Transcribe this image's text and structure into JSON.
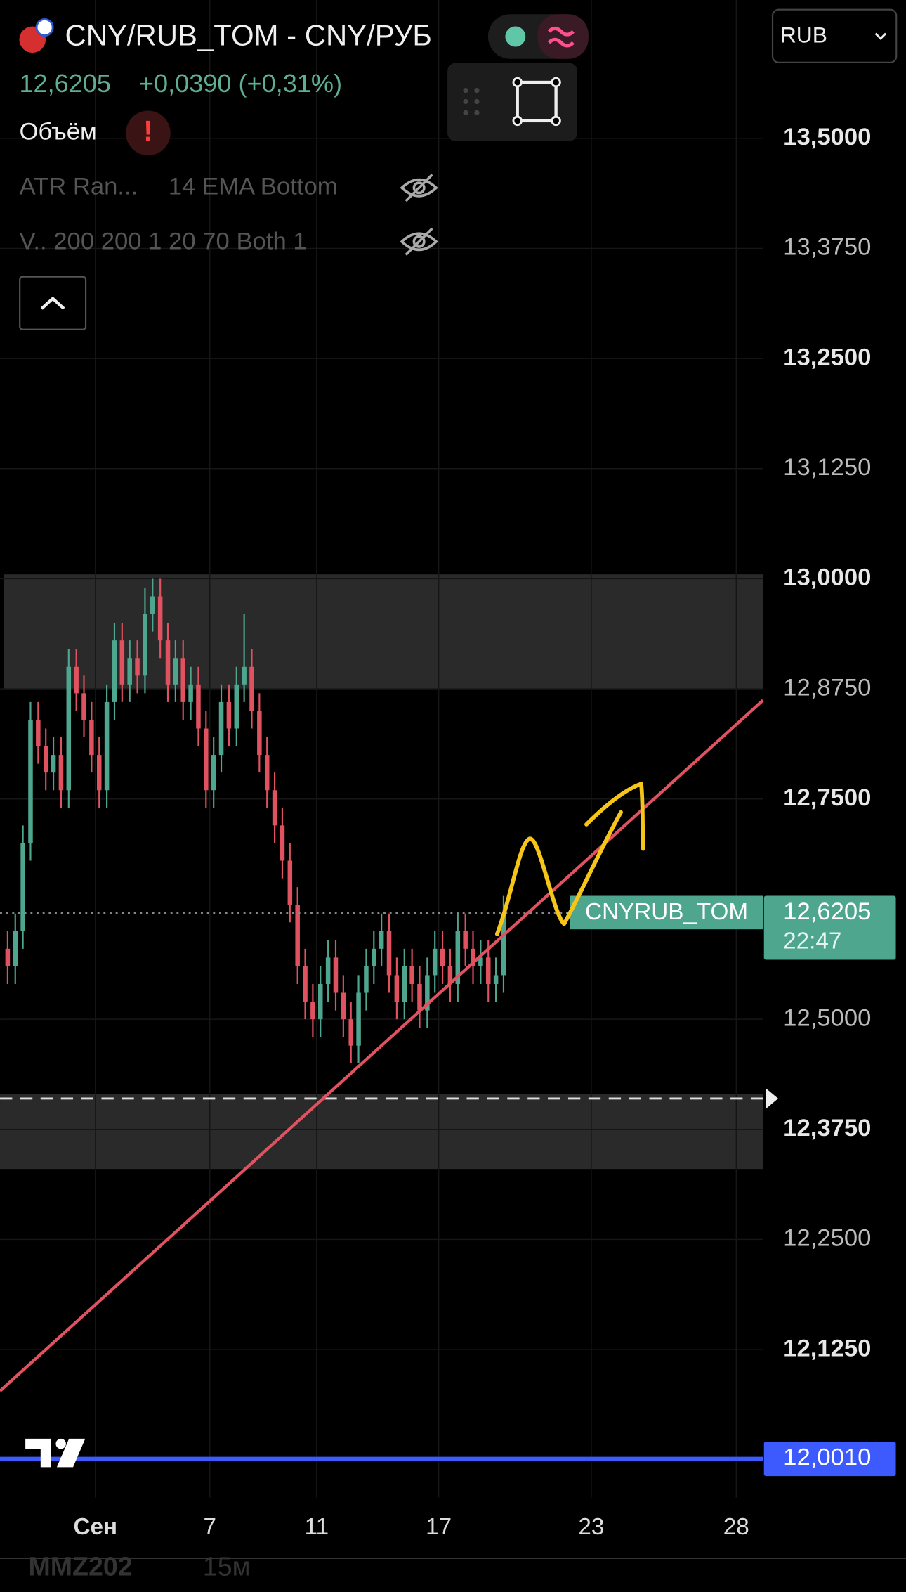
{
  "header": {
    "title": "CNY/RUB_TOM - CNY/РУБ",
    "price": "12,6205",
    "change": "+0,0390 (+0,31%)",
    "volume_label": "Объём",
    "indicators": [
      {
        "name": "ATR Ran...",
        "params": "14 EMA Bottom"
      },
      {
        "name": "V.. 200 200 1 20 70 Both 1"
      }
    ],
    "currency": "RUB"
  },
  "footer": {
    "symbol": "MMZ202",
    "interval": "15м"
  },
  "chart_data": {
    "type": "candlestick",
    "up_color": "#4fa68f",
    "down_color": "#e0525f",
    "grid": true,
    "xlim": [
      -0.5,
      99.5
    ],
    "ylim": [
      11.957,
      13.657
    ],
    "xticks": [
      {
        "value": 12,
        "label": "Сен"
      },
      {
        "value": 27,
        "label": "7"
      },
      {
        "value": 41,
        "label": "11"
      },
      {
        "value": 57,
        "label": "17"
      },
      {
        "value": 77,
        "label": "23"
      },
      {
        "value": 96,
        "label": "28"
      }
    ],
    "yticks": [
      {
        "value": 13.5,
        "label": "13,5000"
      },
      {
        "value": 13.375,
        "label": "13,3750"
      },
      {
        "value": 13.25,
        "label": "13,2500"
      },
      {
        "value": 13.125,
        "label": "13,1250"
      },
      {
        "value": 13.0,
        "label": "13,0000"
      },
      {
        "value": 12.875,
        "label": "12,8750"
      },
      {
        "value": 12.75,
        "label": "12,7500"
      },
      {
        "value": 12.5,
        "label": "12,5000"
      },
      {
        "value": 12.375,
        "label": "12,3750"
      },
      {
        "value": 12.25,
        "label": "12,2500"
      },
      {
        "value": 12.125,
        "label": "12,1250"
      }
    ],
    "x": [
      0,
      1,
      2,
      3,
      4,
      5,
      6,
      7,
      8,
      9,
      10,
      11,
      12,
      13,
      14,
      15,
      16,
      17,
      18,
      19,
      20,
      21,
      22,
      23,
      24,
      25,
      26,
      27,
      28,
      29,
      30,
      31,
      32,
      33,
      34,
      35,
      36,
      37,
      38,
      39,
      40,
      41,
      42,
      43,
      44,
      45,
      46,
      47,
      48,
      49,
      50,
      51,
      52,
      53,
      54,
      55,
      56,
      57,
      58,
      59,
      60,
      61,
      62,
      63,
      64,
      65
    ],
    "open": [
      12.58,
      12.56,
      12.6,
      12.7,
      12.84,
      12.81,
      12.78,
      12.8,
      12.76,
      12.9,
      12.87,
      12.84,
      12.8,
      12.76,
      12.86,
      12.93,
      12.88,
      12.91,
      12.89,
      12.96,
      12.98,
      12.93,
      12.88,
      12.91,
      12.86,
      12.88,
      12.83,
      12.76,
      12.8,
      12.86,
      12.83,
      12.88,
      12.9,
      12.85,
      12.8,
      12.76,
      12.72,
      12.68,
      12.63,
      12.56,
      12.52,
      12.5,
      12.54,
      12.57,
      12.53,
      12.5,
      12.47,
      12.53,
      12.56,
      12.58,
      12.6,
      12.55,
      12.52,
      12.56,
      12.54,
      12.51,
      12.55,
      12.58,
      12.56,
      12.54,
      12.6,
      12.58,
      12.56,
      12.57,
      12.54,
      12.55
    ],
    "high": [
      12.6,
      12.62,
      12.72,
      12.86,
      12.86,
      12.83,
      12.82,
      12.82,
      12.92,
      12.92,
      12.89,
      12.86,
      12.82,
      12.88,
      12.95,
      12.95,
      12.93,
      12.93,
      12.99,
      13.0,
      13.0,
      12.95,
      12.93,
      12.93,
      12.9,
      12.9,
      12.85,
      12.82,
      12.88,
      12.88,
      12.9,
      12.96,
      12.92,
      12.87,
      12.82,
      12.78,
      12.74,
      12.7,
      12.65,
      12.58,
      12.54,
      12.56,
      12.59,
      12.59,
      12.55,
      12.52,
      12.55,
      12.58,
      12.6,
      12.62,
      12.62,
      12.57,
      12.58,
      12.58,
      12.56,
      12.57,
      12.6,
      12.6,
      12.58,
      12.62,
      12.62,
      12.6,
      12.59,
      12.59,
      12.57,
      12.64
    ],
    "low": [
      12.54,
      12.54,
      12.58,
      12.68,
      12.79,
      12.76,
      12.76,
      12.74,
      12.74,
      12.85,
      12.82,
      12.78,
      12.74,
      12.74,
      12.84,
      12.86,
      12.86,
      12.87,
      12.87,
      12.94,
      12.91,
      12.86,
      12.86,
      12.84,
      12.84,
      12.81,
      12.74,
      12.74,
      12.78,
      12.81,
      12.81,
      12.86,
      12.83,
      12.78,
      12.74,
      12.7,
      12.66,
      12.61,
      12.54,
      12.5,
      12.48,
      12.48,
      12.52,
      12.51,
      12.48,
      12.45,
      12.45,
      12.51,
      12.54,
      12.56,
      12.53,
      12.5,
      12.5,
      12.52,
      12.49,
      12.49,
      12.53,
      12.54,
      12.52,
      12.52,
      12.56,
      12.54,
      12.54,
      12.52,
      12.52,
      12.53
    ],
    "close": [
      12.56,
      12.6,
      12.7,
      12.84,
      12.81,
      12.78,
      12.8,
      12.76,
      12.9,
      12.87,
      12.84,
      12.8,
      12.76,
      12.86,
      12.93,
      12.88,
      12.91,
      12.89,
      12.96,
      12.98,
      12.93,
      12.88,
      12.91,
      12.86,
      12.88,
      12.83,
      12.76,
      12.8,
      12.86,
      12.83,
      12.88,
      12.9,
      12.85,
      12.8,
      12.76,
      12.72,
      12.68,
      12.63,
      12.56,
      12.52,
      12.5,
      12.54,
      12.57,
      12.53,
      12.5,
      12.47,
      12.53,
      12.56,
      12.58,
      12.6,
      12.55,
      12.52,
      12.56,
      12.54,
      12.51,
      12.55,
      12.58,
      12.56,
      12.54,
      12.6,
      12.58,
      12.56,
      12.57,
      12.54,
      12.55,
      12.62
    ],
    "zones": [
      {
        "top": 13.005,
        "bottom": 12.875
      },
      {
        "top": 12.415,
        "bottom": 12.33
      }
    ],
    "dashed_level": 12.41,
    "trendline": {
      "x": [
        -0.5,
        99.5
      ],
      "y": [
        12.078,
        12.862
      ],
      "color": "#e05260"
    },
    "last_price": {
      "value": 12.6205,
      "label": "12,6205",
      "time": "22:47",
      "name": "CNYRUB_TOM",
      "color": "#4fa68f"
    },
    "alert_line": {
      "value": 12.001,
      "label": "12,0010",
      "color": "#3d5afe"
    }
  }
}
